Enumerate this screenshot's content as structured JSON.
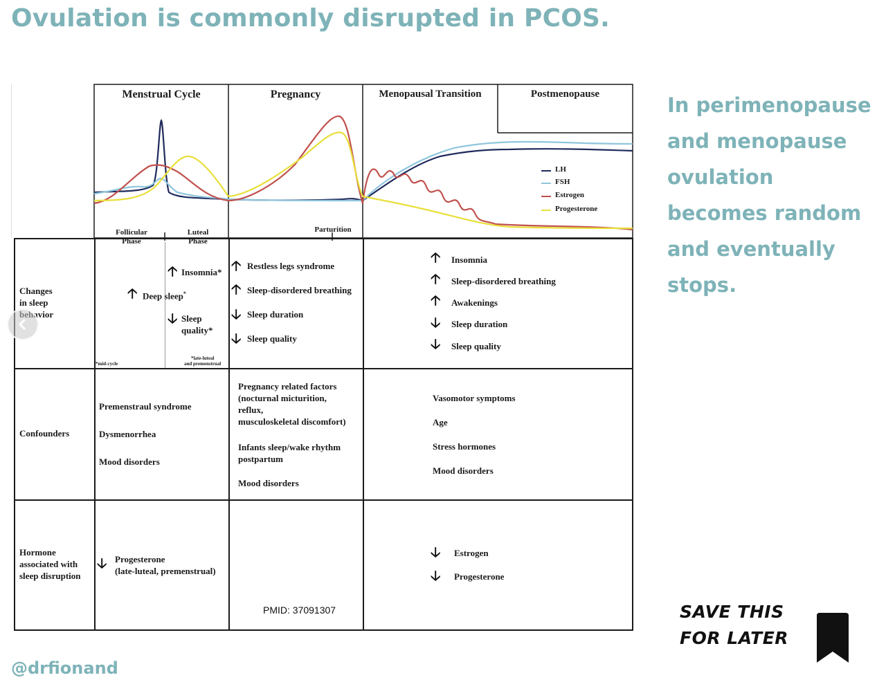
{
  "headline": "Ovulation is commonly disrupted in PCOS.",
  "side_text": "In perimenopause and menopause ovulation becomes random and eventually stops.",
  "handle": "@drfionand",
  "save_cta": {
    "line1": "SAVE THIS",
    "line2": "FOR LATER"
  },
  "icons": {
    "bookmark": "bookmark-icon",
    "prev": "chevron-left-icon"
  },
  "figure": {
    "columns": [
      "Menstrual Cycle",
      "Pregnancy",
      "Menopausal Transition",
      "Postmenopause"
    ],
    "phase_labels": {
      "follicular": "Follicular\nPhase",
      "luteal": "Luteal\nPhase",
      "parturition": "Parturition"
    },
    "legend": [
      {
        "name": "LH",
        "color": "#1f2a5c"
      },
      {
        "name": "FSH",
        "color": "#8fc6dc"
      },
      {
        "name": "Estrogen",
        "color": "#c0504d"
      },
      {
        "name": "Progesterone",
        "color": "#e8df3a"
      }
    ],
    "rows": {
      "sleep_label": "Changes\nin sleep\nbehavior",
      "confounders_label": "Confounders",
      "hormone_label": "Hormone\nassociated with\nsleep disruption"
    },
    "sleep_menstrual": {
      "deep_sleep": "Deep sleep",
      "deep_sleep_mark": "*",
      "insomnia": "Insomnia*",
      "sleep_quality": "Sleep\nquality*",
      "note_midcycle": "*mid-cycle",
      "note_luteal": "*late-luteal\nand premenstrual"
    },
    "sleep_pregnancy": [
      "Restless legs syndrome",
      "Sleep-disordered breathing",
      "Sleep duration",
      "Sleep quality"
    ],
    "sleep_menopause": [
      "Insomnia",
      "Sleep-disordered breathing",
      "Awakenings",
      "Sleep duration",
      "Sleep quality"
    ],
    "confounders_menstrual": [
      "Premenstraul syndrome",
      "Dysmenorrhea",
      "Mood disorders"
    ],
    "confounders_pregnancy": {
      "factors": "Pregnancy related factors\n(nocturnal micturition,\nreflux,\nmusculoskeletal discomfort)",
      "infants": "Infants sleep/wake rhythm\npostpartum",
      "mood": "Mood disorders"
    },
    "confounders_menopause": [
      "Vasomotor symptoms",
      "Age",
      "Stress hormones",
      "Mood disorders"
    ],
    "hormone_menstrual": "Progesterone\n(late-luteal, premenstrual)",
    "hormone_menopause": [
      "Estrogen",
      "Progesterone"
    ],
    "pmid": "PMID: 37091307"
  }
}
